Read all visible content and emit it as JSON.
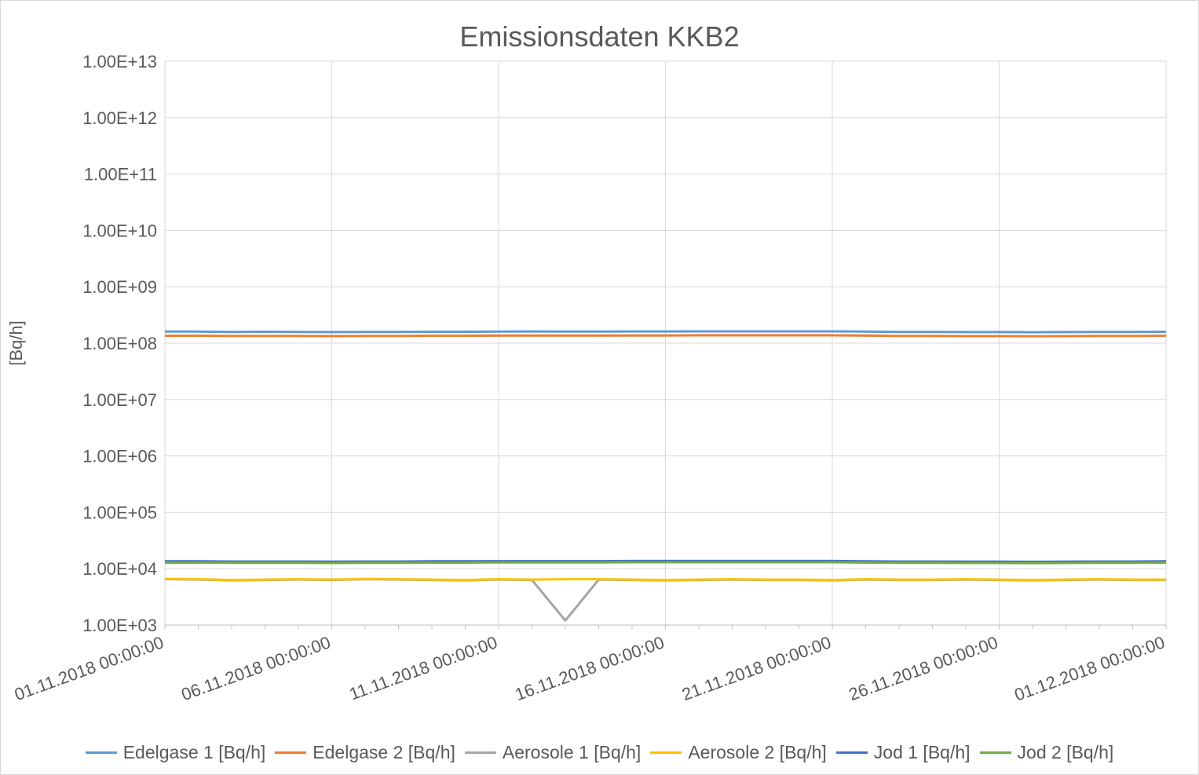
{
  "chart_data": {
    "type": "line",
    "title": "Emissionsdaten KKB2",
    "xlabel": "",
    "ylabel": "[Bq/h]",
    "yscale": "log",
    "ylim": [
      1000,
      10000000000000
    ],
    "xlim": [
      "01.11.2018 00:00:00",
      "01.12.2018 00:00:00"
    ],
    "grid": true,
    "legend_position": "bottom",
    "y_tick_labels": [
      "1.00E+03",
      "1.00E+04",
      "1.00E+05",
      "1.00E+06",
      "1.00E+07",
      "1.00E+08",
      "1.00E+09",
      "1.00E+10",
      "1.00E+11",
      "1.00E+12",
      "1.00E+13"
    ],
    "x_tick_labels": [
      "01.11.2018 00:00:00",
      "06.11.2018 00:00:00",
      "11.11.2018 00:00:00",
      "16.11.2018 00:00:00",
      "21.11.2018 00:00:00",
      "26.11.2018 00:00:00",
      "01.12.2018 00:00:00"
    ],
    "x": [
      "01.11.2018",
      "02.11.2018",
      "03.11.2018",
      "04.11.2018",
      "05.11.2018",
      "06.11.2018",
      "07.11.2018",
      "08.11.2018",
      "09.11.2018",
      "10.11.2018",
      "11.11.2018",
      "12.11.2018",
      "13.11.2018",
      "14.11.2018",
      "15.11.2018",
      "16.11.2018",
      "17.11.2018",
      "18.11.2018",
      "19.11.2018",
      "20.11.2018",
      "21.11.2018",
      "22.11.2018",
      "23.11.2018",
      "24.11.2018",
      "25.11.2018",
      "26.11.2018",
      "27.11.2018",
      "28.11.2018",
      "29.11.2018",
      "30.11.2018",
      "01.12.2018"
    ],
    "series": [
      {
        "name": "Edelgase 1 [Bq/h]",
        "color": "#5b9bd5",
        "values": [
          160000000,
          160000000,
          158000000,
          159000000,
          158000000,
          157000000,
          158000000,
          158000000,
          159000000,
          159000000,
          160000000,
          161000000,
          160000000,
          160000000,
          161000000,
          161000000,
          162000000,
          162000000,
          162000000,
          162000000,
          162000000,
          160000000,
          158000000,
          158000000,
          157000000,
          157000000,
          156000000,
          157000000,
          158000000,
          158000000,
          159000000
        ]
      },
      {
        "name": "Edelgase 2 [Bq/h]",
        "color": "#ed7d31",
        "values": [
          135000000,
          135000000,
          134000000,
          134000000,
          134000000,
          133000000,
          134000000,
          134000000,
          135000000,
          135000000,
          136000000,
          136000000,
          136000000,
          136000000,
          137000000,
          137000000,
          138000000,
          138000000,
          138000000,
          138000000,
          138000000,
          136000000,
          134000000,
          134000000,
          133000000,
          133000000,
          132000000,
          133000000,
          134000000,
          134000000,
          135000000
        ]
      },
      {
        "name": "Aerosole 1 [Bq/h]",
        "color": "#a5a5a5",
        "values": [
          6500,
          6400,
          6200,
          6300,
          6400,
          6300,
          6500,
          6400,
          6300,
          6200,
          6400,
          6300,
          1200,
          6400,
          6300,
          6200,
          6300,
          6400,
          6300,
          6300,
          6200,
          6400,
          6300,
          6300,
          6400,
          6300,
          6200,
          6300,
          6400,
          6300,
          6300
        ]
      },
      {
        "name": "Aerosole 2 [Bq/h]",
        "color": "#ffc000",
        "values": [
          6600,
          6500,
          6300,
          6400,
          6500,
          6400,
          6600,
          6500,
          6400,
          6300,
          6500,
          6400,
          6500,
          6500,
          6400,
          6300,
          6400,
          6500,
          6400,
          6400,
          6300,
          6500,
          6400,
          6400,
          6500,
          6400,
          6300,
          6400,
          6500,
          6400,
          6400
        ]
      },
      {
        "name": "Jod 1 [Bq/h]",
        "color": "#4472c4",
        "values": [
          13500,
          13500,
          13400,
          13400,
          13400,
          13300,
          13400,
          13400,
          13500,
          13500,
          13600,
          13600,
          13600,
          13600,
          13700,
          13700,
          13700,
          13700,
          13700,
          13700,
          13700,
          13500,
          13400,
          13400,
          13300,
          13300,
          13200,
          13300,
          13400,
          13400,
          13500
        ]
      },
      {
        "name": "Jod 2 [Bq/h]",
        "color": "#70ad47",
        "values": [
          12800,
          12800,
          12700,
          12700,
          12700,
          12600,
          12700,
          12700,
          12800,
          12800,
          12900,
          12900,
          12900,
          12900,
          13000,
          13000,
          13000,
          13000,
          13000,
          13000,
          13000,
          12800,
          12700,
          12700,
          12600,
          12600,
          12500,
          12600,
          12700,
          12700,
          12800
        ]
      }
    ]
  }
}
